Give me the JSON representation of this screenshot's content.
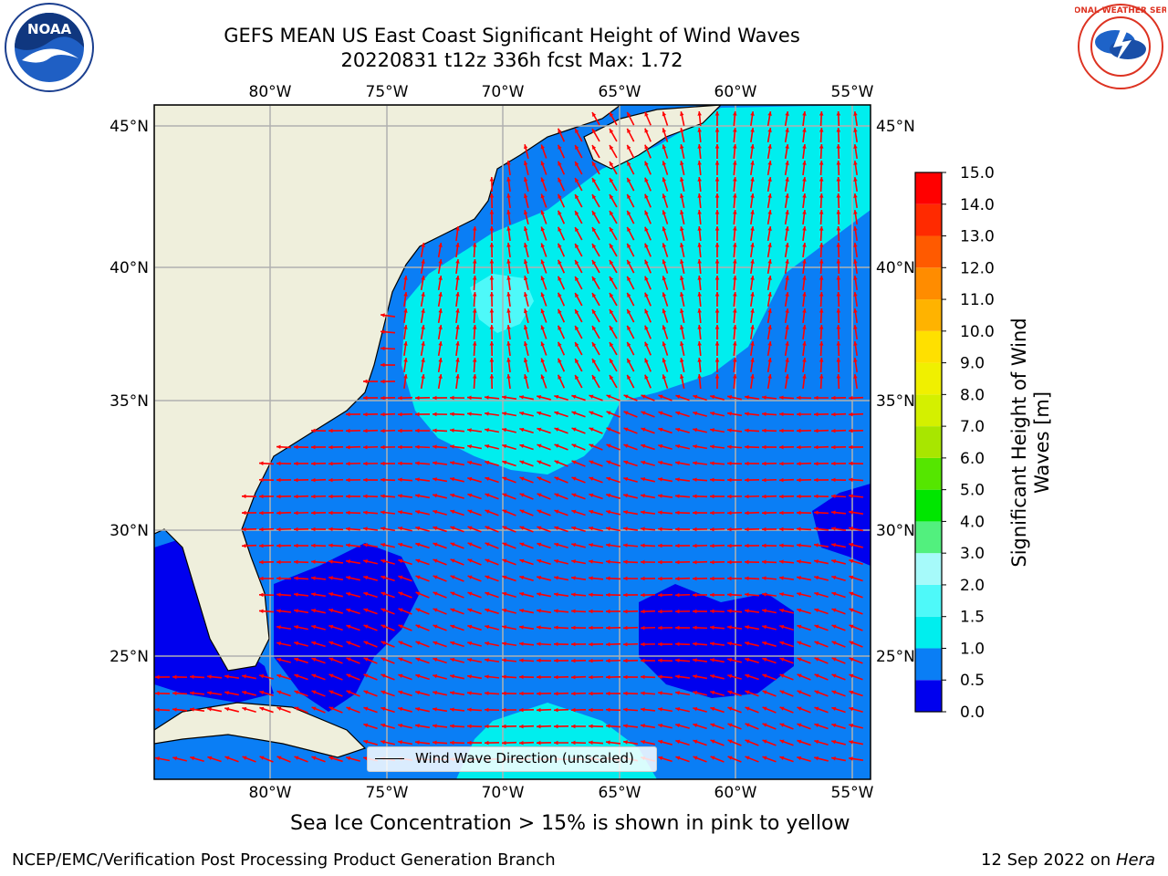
{
  "title_line1": "GEFS MEAN US East Coast Significant Height of Wind Waves",
  "title_line2": "20220831 t12z 336h fcst   Max: 1.72",
  "logos": {
    "left": "noaa-logo",
    "right": "national-weather-service-logo",
    "left_text": "NOAA",
    "right_text": "NATIONAL WEATHER SERVICE"
  },
  "map": {
    "lon_range": [
      -85,
      -54
    ],
    "lat_range": [
      20.5,
      45.8
    ],
    "lon_ticks": [
      "80°W",
      "75°W",
      "70°W",
      "65°W",
      "60°W",
      "55°W"
    ],
    "lat_ticks": [
      "45°N",
      "40°N",
      "35°N",
      "30°N",
      "25°N"
    ],
    "land_color": "#efefdc",
    "legend_label": "Wind Wave Direction (unscaled)",
    "arrow_color": "#ff0000"
  },
  "colorbar": {
    "title": "Significant Height of Wind Waves [m]",
    "levels": [
      "0.0",
      "0.5",
      "1.0",
      "1.5",
      "2.0",
      "3.0",
      "4.0",
      "5.0",
      "6.0",
      "7.0",
      "8.0",
      "9.0",
      "10.0",
      "11.0",
      "12.0",
      "13.0",
      "14.0",
      "15.0"
    ],
    "colors": [
      "#0000ee",
      "#0a7ef5",
      "#00eeee",
      "#4ef9f9",
      "#a6fafa",
      "#52f07e",
      "#00e600",
      "#55e600",
      "#a8e600",
      "#d4f000",
      "#f0f000",
      "#ffe000",
      "#ffb300",
      "#ff8c00",
      "#ff5a00",
      "#ff2a00",
      "#ff0000"
    ]
  },
  "subcaption": "Sea Ice Concentration > 15% is shown in pink to yellow",
  "footer_left": "NCEP/EMC/Verification Post Processing Product Generation Branch",
  "footer_right_date": "12 Sep 2022 on ",
  "footer_right_host": "Hera"
}
